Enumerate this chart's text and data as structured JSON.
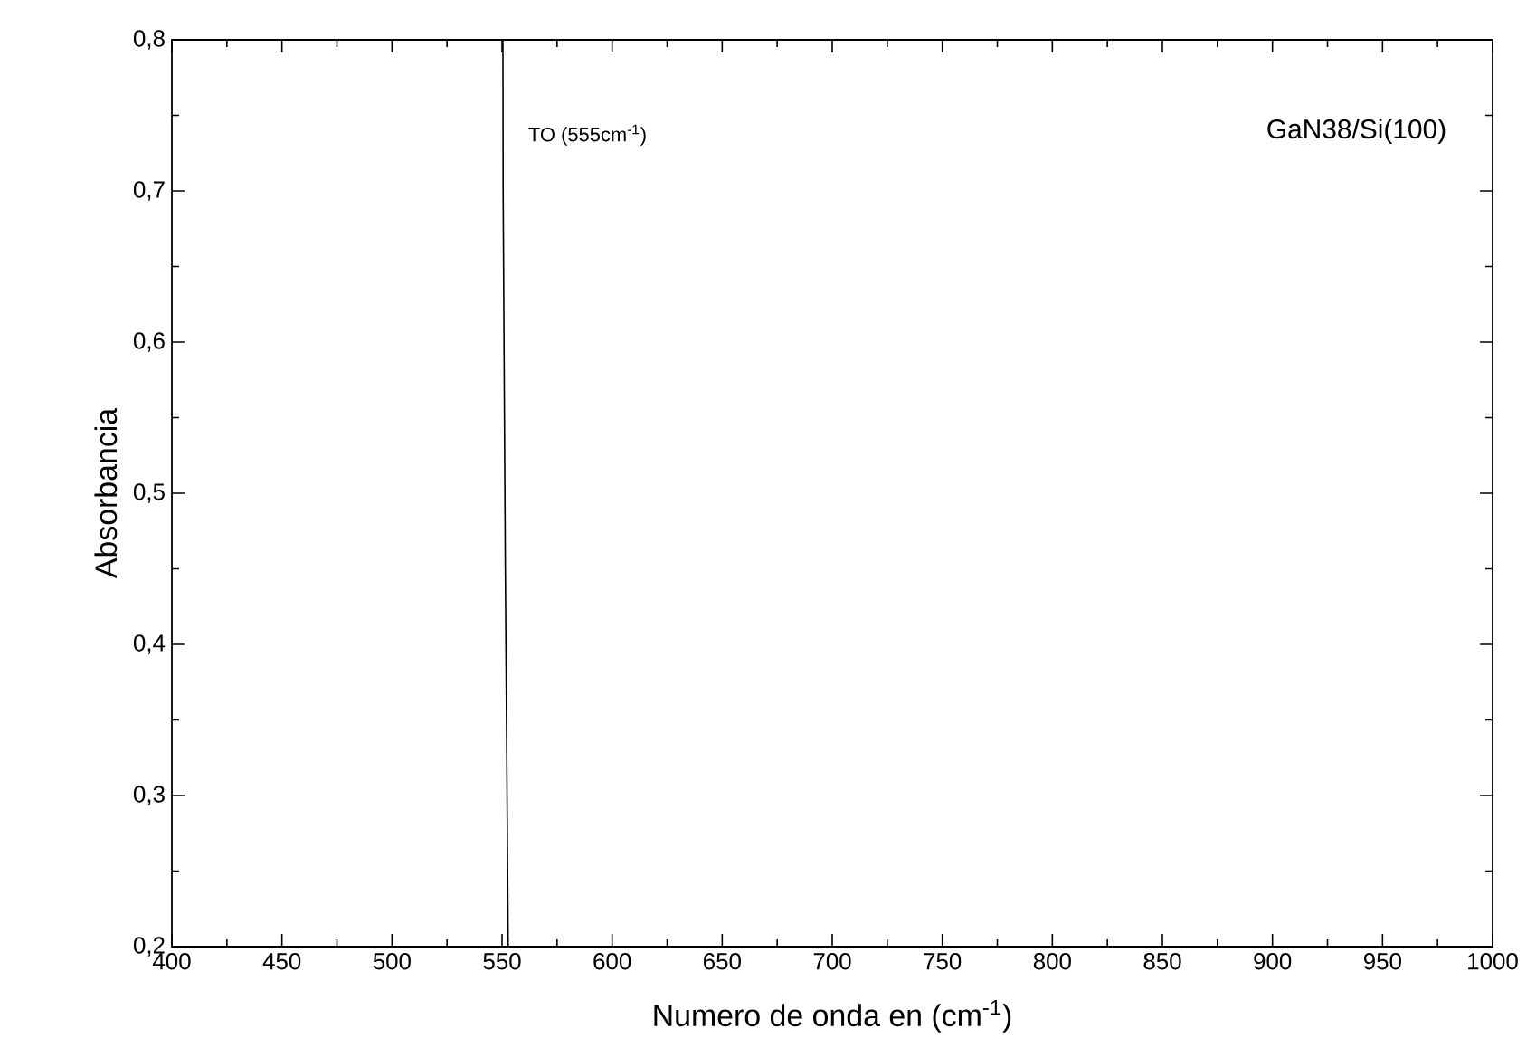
{
  "chart_data": {
    "type": "line",
    "xlabel": "Numero de onda en (cm$^{-1}$)",
    "ylabel": "Absorbancia",
    "annotations": [
      "TO (555cm$^{-1}$)",
      "GaN38/Si(100)"
    ],
    "series": [
      {
        "color": "#000000",
        "x": [
          550.4,
          550.5,
          551.5,
          552.8
        ],
        "values": [
          0.8,
          0.7,
          0.45,
          0.2
        ]
      }
    ],
    "xlim": [
      400,
      1000
    ],
    "xticks": [
      400,
      450,
      500,
      550,
      600,
      650,
      700,
      750,
      800,
      850,
      900,
      950,
      1000
    ],
    "ylim": [
      0.2,
      0.8
    ],
    "yticks": [
      {
        "value": 0.2,
        "label": "0,2"
      },
      {
        "value": 0.3,
        "label": "0,3"
      },
      {
        "value": 0.4,
        "label": "0,4"
      },
      {
        "value": 0.5,
        "label": "0,5"
      },
      {
        "value": 0.6,
        "label": "0,6"
      },
      {
        "value": 0.7,
        "label": "0,7"
      },
      {
        "value": 0.8,
        "label": "0,8"
      }
    ],
    "grid": false,
    "marker": "none",
    "line_style": "solid"
  }
}
